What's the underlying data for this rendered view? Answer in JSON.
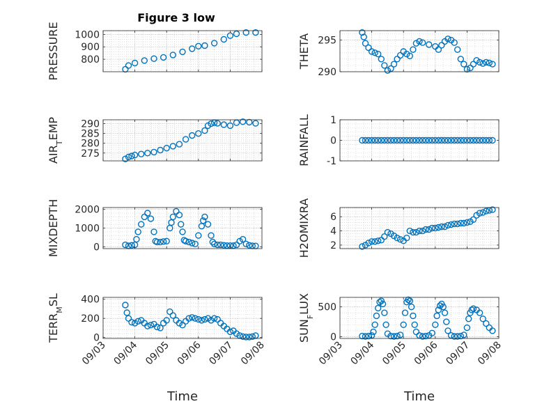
{
  "figure": {
    "title": "Figure 3 low",
    "xlabel": "Time",
    "marker_color": "#0072bd",
    "x_ticks": [
      "09/03",
      "09/04",
      "09/05",
      "09/06",
      "09/07",
      "09/08"
    ]
  },
  "chart_data": [
    {
      "type": "scatter",
      "marker": "circle-open",
      "ylabel": "PRESSURE",
      "ylim": [
        700,
        1030
      ],
      "yticks": [
        800,
        900,
        1000
      ],
      "x": [
        3.7,
        3.8,
        4.0,
        4.3,
        4.6,
        4.9,
        5.2,
        5.5,
        5.8,
        6.0,
        6.2,
        6.5,
        6.8,
        7.0,
        7.2,
        7.5,
        7.8
      ],
      "y": [
        720,
        750,
        770,
        790,
        805,
        815,
        835,
        860,
        885,
        905,
        910,
        930,
        960,
        990,
        1005,
        1015,
        1015
      ]
    },
    {
      "type": "scatter",
      "marker": "circle-open",
      "ylabel": "THETA",
      "ylim": [
        290,
        296.5
      ],
      "yticks": [
        290,
        295
      ],
      "x": [
        3.7,
        3.75,
        3.8,
        3.9,
        4.0,
        4.1,
        4.2,
        4.3,
        4.4,
        4.5,
        4.6,
        4.7,
        4.8,
        4.9,
        5.0,
        5.1,
        5.2,
        5.3,
        5.4,
        5.5,
        5.6,
        5.8,
        6.0,
        6.1,
        6.2,
        6.3,
        6.4,
        6.5,
        6.6,
        6.7,
        6.8,
        6.9,
        7.0,
        7.1,
        7.2,
        7.3,
        7.4,
        7.5,
        7.6,
        7.7,
        7.8
      ],
      "y": [
        296.2,
        295.5,
        294.5,
        293.8,
        293.2,
        293.0,
        292.8,
        292.0,
        291.0,
        290.2,
        290.5,
        291.2,
        292.0,
        292.6,
        293.2,
        292.8,
        292.5,
        293.5,
        294.5,
        294.8,
        294.6,
        294.3,
        294.0,
        293.5,
        294.2,
        294.8,
        295.2,
        295.0,
        294.6,
        293.5,
        292.0,
        291.2,
        290.4,
        290.6,
        291.2,
        291.8,
        291.5,
        291.3,
        291.5,
        291.4,
        291.2
      ]
    },
    {
      "type": "scatter",
      "marker": "circle-open",
      "ylabel": "AIR_TEMP",
      "ylim": [
        271,
        292
      ],
      "yticks": [
        275,
        280,
        285,
        290
      ],
      "x": [
        3.7,
        3.8,
        3.9,
        4.0,
        4.2,
        4.4,
        4.6,
        4.8,
        5.0,
        5.2,
        5.4,
        5.6,
        5.8,
        6.0,
        6.2,
        6.3,
        6.4,
        6.5,
        6.6,
        6.8,
        7.0,
        7.2,
        7.4,
        7.6,
        7.8
      ],
      "y": [
        272,
        273,
        273.5,
        274,
        274.5,
        275,
        275.5,
        276.5,
        277.5,
        278.5,
        279.5,
        282,
        284,
        285,
        286.5,
        289,
        290,
        290.5,
        290.2,
        289.5,
        289,
        290.5,
        291,
        290.8,
        290.2
      ]
    },
    {
      "type": "scatter",
      "marker": "circle-open",
      "ylabel": "RAINFALL",
      "ylim": [
        -1,
        1
      ],
      "yticks": [
        -1,
        0,
        1
      ],
      "x": [
        3.7,
        3.8,
        3.9,
        4.0,
        4.1,
        4.2,
        4.3,
        4.4,
        4.5,
        4.6,
        4.7,
        4.8,
        4.9,
        5.0,
        5.1,
        5.2,
        5.3,
        5.4,
        5.5,
        5.6,
        5.7,
        5.8,
        5.9,
        6.0,
        6.1,
        6.2,
        6.3,
        6.4,
        6.5,
        6.6,
        6.7,
        6.8,
        6.9,
        7.0,
        7.1,
        7.2,
        7.3,
        7.4,
        7.5,
        7.6,
        7.7,
        7.8
      ],
      "y": [
        0,
        0,
        0,
        0,
        0,
        0,
        0,
        0,
        0,
        0,
        0,
        0,
        0,
        0,
        0,
        0,
        0,
        0,
        0,
        0,
        0,
        0,
        0,
        0,
        0,
        0,
        0,
        0,
        0,
        0,
        0,
        0,
        0,
        0,
        0,
        0,
        0,
        0,
        0,
        0,
        0,
        0
      ]
    },
    {
      "type": "scatter",
      "marker": "circle-open",
      "ylabel": "MIXDEPTH",
      "ylim": [
        -100,
        2100
      ],
      "yticks": [
        0,
        1000,
        2000
      ],
      "x": [
        3.7,
        3.8,
        3.9,
        4.0,
        4.05,
        4.1,
        4.2,
        4.3,
        4.4,
        4.5,
        4.6,
        4.65,
        4.7,
        4.8,
        4.9,
        5.0,
        5.1,
        5.15,
        5.2,
        5.3,
        5.4,
        5.45,
        5.5,
        5.55,
        5.6,
        5.7,
        5.8,
        5.9,
        6.0,
        6.1,
        6.15,
        6.2,
        6.3,
        6.4,
        6.45,
        6.5,
        6.6,
        6.7,
        6.8,
        6.9,
        7.0,
        7.1,
        7.2,
        7.3,
        7.4,
        7.5,
        7.6,
        7.7,
        7.8
      ],
      "y": [
        100,
        50,
        80,
        100,
        400,
        800,
        1200,
        1600,
        1800,
        1500,
        800,
        300,
        250,
        250,
        280,
        300,
        1000,
        1300,
        1600,
        1900,
        1700,
        1200,
        800,
        350,
        300,
        250,
        200,
        150,
        600,
        1100,
        1400,
        1600,
        1200,
        600,
        250,
        150,
        100,
        100,
        80,
        60,
        60,
        60,
        100,
        300,
        400,
        150,
        80,
        50,
        40
      ]
    },
    {
      "type": "scatter",
      "marker": "circle-open",
      "ylabel": "H2OMIXRA",
      "ylim": [
        1.5,
        7.3
      ],
      "yticks": [
        2,
        4,
        6
      ],
      "x": [
        3.7,
        3.8,
        3.9,
        4.0,
        4.1,
        4.2,
        4.3,
        4.4,
        4.5,
        4.6,
        4.7,
        4.8,
        4.9,
        5.0,
        5.1,
        5.2,
        5.3,
        5.4,
        5.5,
        5.6,
        5.7,
        5.8,
        5.9,
        6.0,
        6.1,
        6.2,
        6.3,
        6.4,
        6.5,
        6.6,
        6.7,
        6.8,
        6.9,
        7.0,
        7.1,
        7.2,
        7.3,
        7.4,
        7.5,
        7.6,
        7.7,
        7.8
      ],
      "y": [
        1.8,
        2.0,
        2.3,
        2.5,
        2.5,
        2.6,
        2.7,
        3.2,
        3.8,
        3.6,
        3.3,
        3.0,
        2.8,
        2.6,
        3.0,
        4.0,
        3.8,
        3.8,
        4.0,
        4.0,
        4.2,
        4.2,
        4.4,
        4.4,
        4.5,
        4.6,
        4.6,
        4.8,
        4.9,
        5.0,
        5.0,
        5.1,
        5.1,
        5.2,
        5.3,
        5.6,
        6.2,
        6.5,
        6.6,
        6.8,
        6.9,
        7.0
      ]
    },
    {
      "type": "scatter",
      "marker": "circle-open",
      "ylabel": "TERR_MSL",
      "ylim": [
        -10,
        420
      ],
      "yticks": [
        0,
        200,
        400
      ],
      "x": [
        3.7,
        3.75,
        3.8,
        3.9,
        4.0,
        4.1,
        4.2,
        4.3,
        4.4,
        4.5,
        4.6,
        4.7,
        4.8,
        4.9,
        5.0,
        5.1,
        5.2,
        5.3,
        5.4,
        5.5,
        5.6,
        5.7,
        5.8,
        5.9,
        6.0,
        6.1,
        6.2,
        6.3,
        6.4,
        6.5,
        6.6,
        6.7,
        6.8,
        6.9,
        7.0,
        7.1,
        7.2,
        7.3,
        7.4,
        7.5,
        7.6,
        7.7,
        7.8
      ],
      "y": [
        340,
        260,
        200,
        160,
        150,
        170,
        180,
        150,
        120,
        130,
        140,
        110,
        100,
        150,
        180,
        270,
        230,
        180,
        150,
        130,
        170,
        200,
        210,
        200,
        190,
        180,
        190,
        200,
        180,
        200,
        190,
        150,
        120,
        90,
        60,
        70,
        40,
        20,
        10,
        5,
        5,
        10,
        20
      ]
    },
    {
      "type": "scatter",
      "marker": "circle-open",
      "ylabel": "SUN_FLUX",
      "ylim": [
        -30,
        660
      ],
      "yticks": [
        0,
        500
      ],
      "x": [
        3.7,
        3.8,
        3.9,
        4.0,
        4.05,
        4.1,
        4.15,
        4.2,
        4.25,
        4.3,
        4.35,
        4.4,
        4.45,
        4.5,
        4.6,
        4.7,
        4.8,
        4.9,
        5.0,
        5.05,
        5.1,
        5.15,
        5.2,
        5.25,
        5.3,
        5.35,
        5.4,
        5.5,
        5.6,
        5.7,
        5.8,
        5.9,
        6.0,
        6.05,
        6.1,
        6.15,
        6.2,
        6.25,
        6.3,
        6.35,
        6.4,
        6.5,
        6.6,
        6.7,
        6.8,
        6.9,
        7.0,
        7.05,
        7.1,
        7.15,
        7.2,
        7.3,
        7.4,
        7.5,
        7.6,
        7.7,
        7.8
      ],
      "y": [
        10,
        5,
        10,
        20,
        80,
        200,
        350,
        480,
        580,
        600,
        550,
        400,
        200,
        50,
        10,
        5,
        10,
        30,
        200,
        400,
        580,
        620,
        600,
        500,
        350,
        200,
        80,
        20,
        5,
        10,
        20,
        60,
        200,
        350,
        450,
        520,
        550,
        500,
        400,
        250,
        100,
        20,
        5,
        5,
        10,
        30,
        150,
        300,
        400,
        450,
        470,
        450,
        400,
        300,
        220,
        150,
        100
      ]
    }
  ]
}
